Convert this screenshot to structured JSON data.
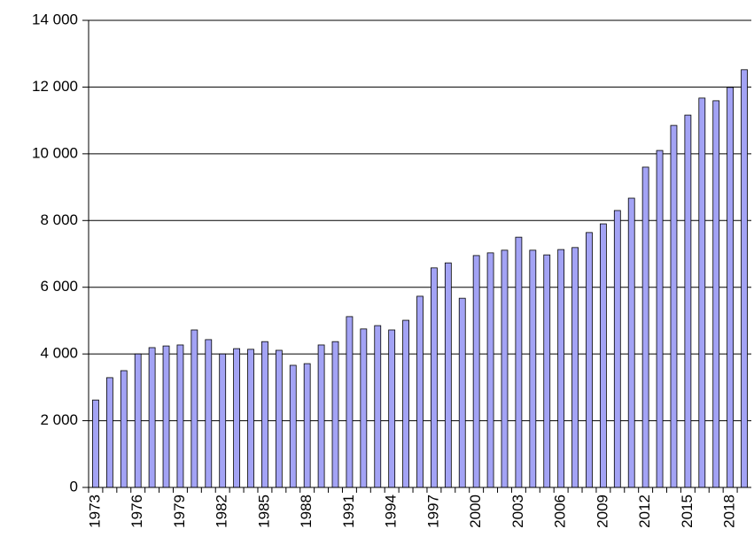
{
  "chart_data": {
    "type": "bar",
    "categories": [
      "1973",
      null,
      null,
      "1976",
      null,
      null,
      "1979",
      null,
      null,
      "1982",
      null,
      null,
      "1985",
      null,
      null,
      "1988",
      null,
      null,
      "1991",
      null,
      null,
      "1994",
      null,
      null,
      "1997",
      null,
      null,
      "2000",
      null,
      null,
      "2003",
      null,
      null,
      "2006",
      null,
      null,
      "2009",
      null,
      null,
      "2012",
      null,
      null,
      "2015",
      null,
      null,
      "2018",
      null
    ],
    "values": [
      2620,
      3290,
      3500,
      4000,
      4190,
      4240,
      4270,
      4720,
      4430,
      4000,
      4160,
      4140,
      4370,
      4110,
      3660,
      3710,
      4270,
      4370,
      5120,
      4750,
      4850,
      4720,
      5010,
      5730,
      6580,
      6730,
      5670,
      6950,
      7030,
      7110,
      7500,
      7110,
      6970,
      7130,
      7190,
      7640,
      7900,
      8300,
      8670,
      9600,
      10100,
      10850,
      11160,
      11670,
      11590,
      11990,
      12520
    ],
    "color": "#a3a3f5",
    "ylim": [
      0,
      14000
    ],
    "yticks": [
      0,
      {
        "value": 2000,
        "label": "2 000"
      },
      {
        "value": 4000,
        "label": "4 000"
      },
      {
        "value": 6000,
        "label": "6 000"
      },
      {
        "value": 8000,
        "label": "8 000"
      },
      {
        "value": 10000,
        "label": "10 000"
      },
      {
        "value": 12000,
        "label": "12 000"
      },
      {
        "value": 14000,
        "label": "14 000"
      }
    ],
    "grid": true
  }
}
